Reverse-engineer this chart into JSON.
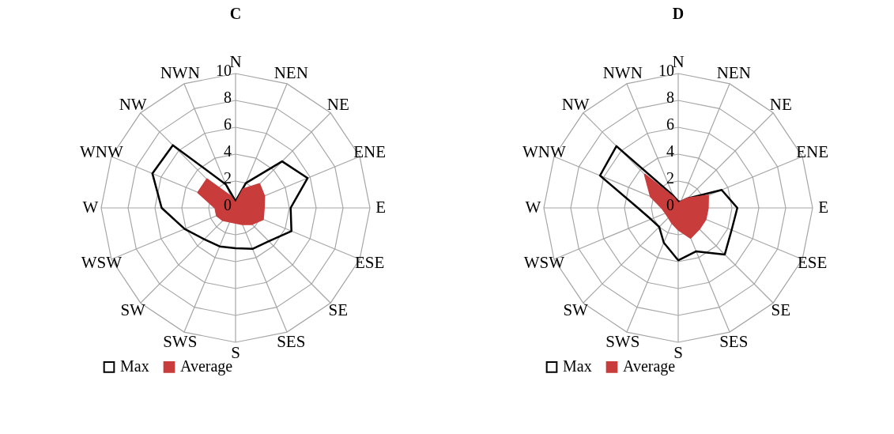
{
  "chart_data": [
    {
      "type": "radar",
      "title": "C",
      "categories": [
        "N",
        "NEN",
        "NE",
        "ENE",
        "E",
        "ESE",
        "SE",
        "SES",
        "S",
        "SWS",
        "SW",
        "WSW",
        "W",
        "WNW",
        "NW",
        "NWN"
      ],
      "ylim": [
        0,
        10
      ],
      "yticks": [
        0,
        2,
        4,
        6,
        8,
        10
      ],
      "grid": true,
      "legend": "bottom",
      "series": [
        {
          "name": "Max",
          "color": "#000000",
          "values": [
            0.5,
            2.0,
            4.9,
            5.8,
            4.1,
            4.5,
            3.5,
            3.3,
            3.0,
            3.1,
            3.3,
            4.1,
            5.5,
            6.7,
            6.6,
            1.9
          ]
        },
        {
          "name": "Average",
          "type": "area",
          "color": "#c83c3c",
          "values": [
            0.3,
            1.5,
            2.5,
            2.3,
            2.1,
            2.2,
            1.7,
            1.3,
            1.1,
            1.1,
            1.3,
            1.5,
            1.5,
            3.0,
            3.0,
            0.9
          ]
        }
      ]
    },
    {
      "type": "radar",
      "title": "D",
      "categories": [
        "N",
        "NEN",
        "NE",
        "ENE",
        "E",
        "ESE",
        "SE",
        "SES",
        "S",
        "SWS",
        "SW",
        "WSW",
        "W",
        "WNW",
        "NW",
        "NWN"
      ],
      "ylim": [
        0,
        10
      ],
      "yticks": [
        0,
        2,
        4,
        6,
        8,
        10
      ],
      "grid": true,
      "legend": "bottom",
      "series": [
        {
          "name": "Max",
          "color": "#000000",
          "values": [
            0.5,
            0.5,
            1.0,
            3.5,
            4.4,
            4.3,
            4.9,
            3.5,
            3.9,
            2.8,
            2.0,
            2.2,
            3.0,
            6.3,
            6.5,
            1.0
          ]
        },
        {
          "name": "Average",
          "type": "area",
          "color": "#c83c3c",
          "values": [
            0.3,
            0.5,
            1.0,
            2.4,
            2.2,
            2.2,
            2.2,
            2.4,
            1.6,
            1.2,
            1.0,
            1.0,
            1.2,
            2.2,
            3.5,
            0.8
          ]
        }
      ]
    }
  ]
}
